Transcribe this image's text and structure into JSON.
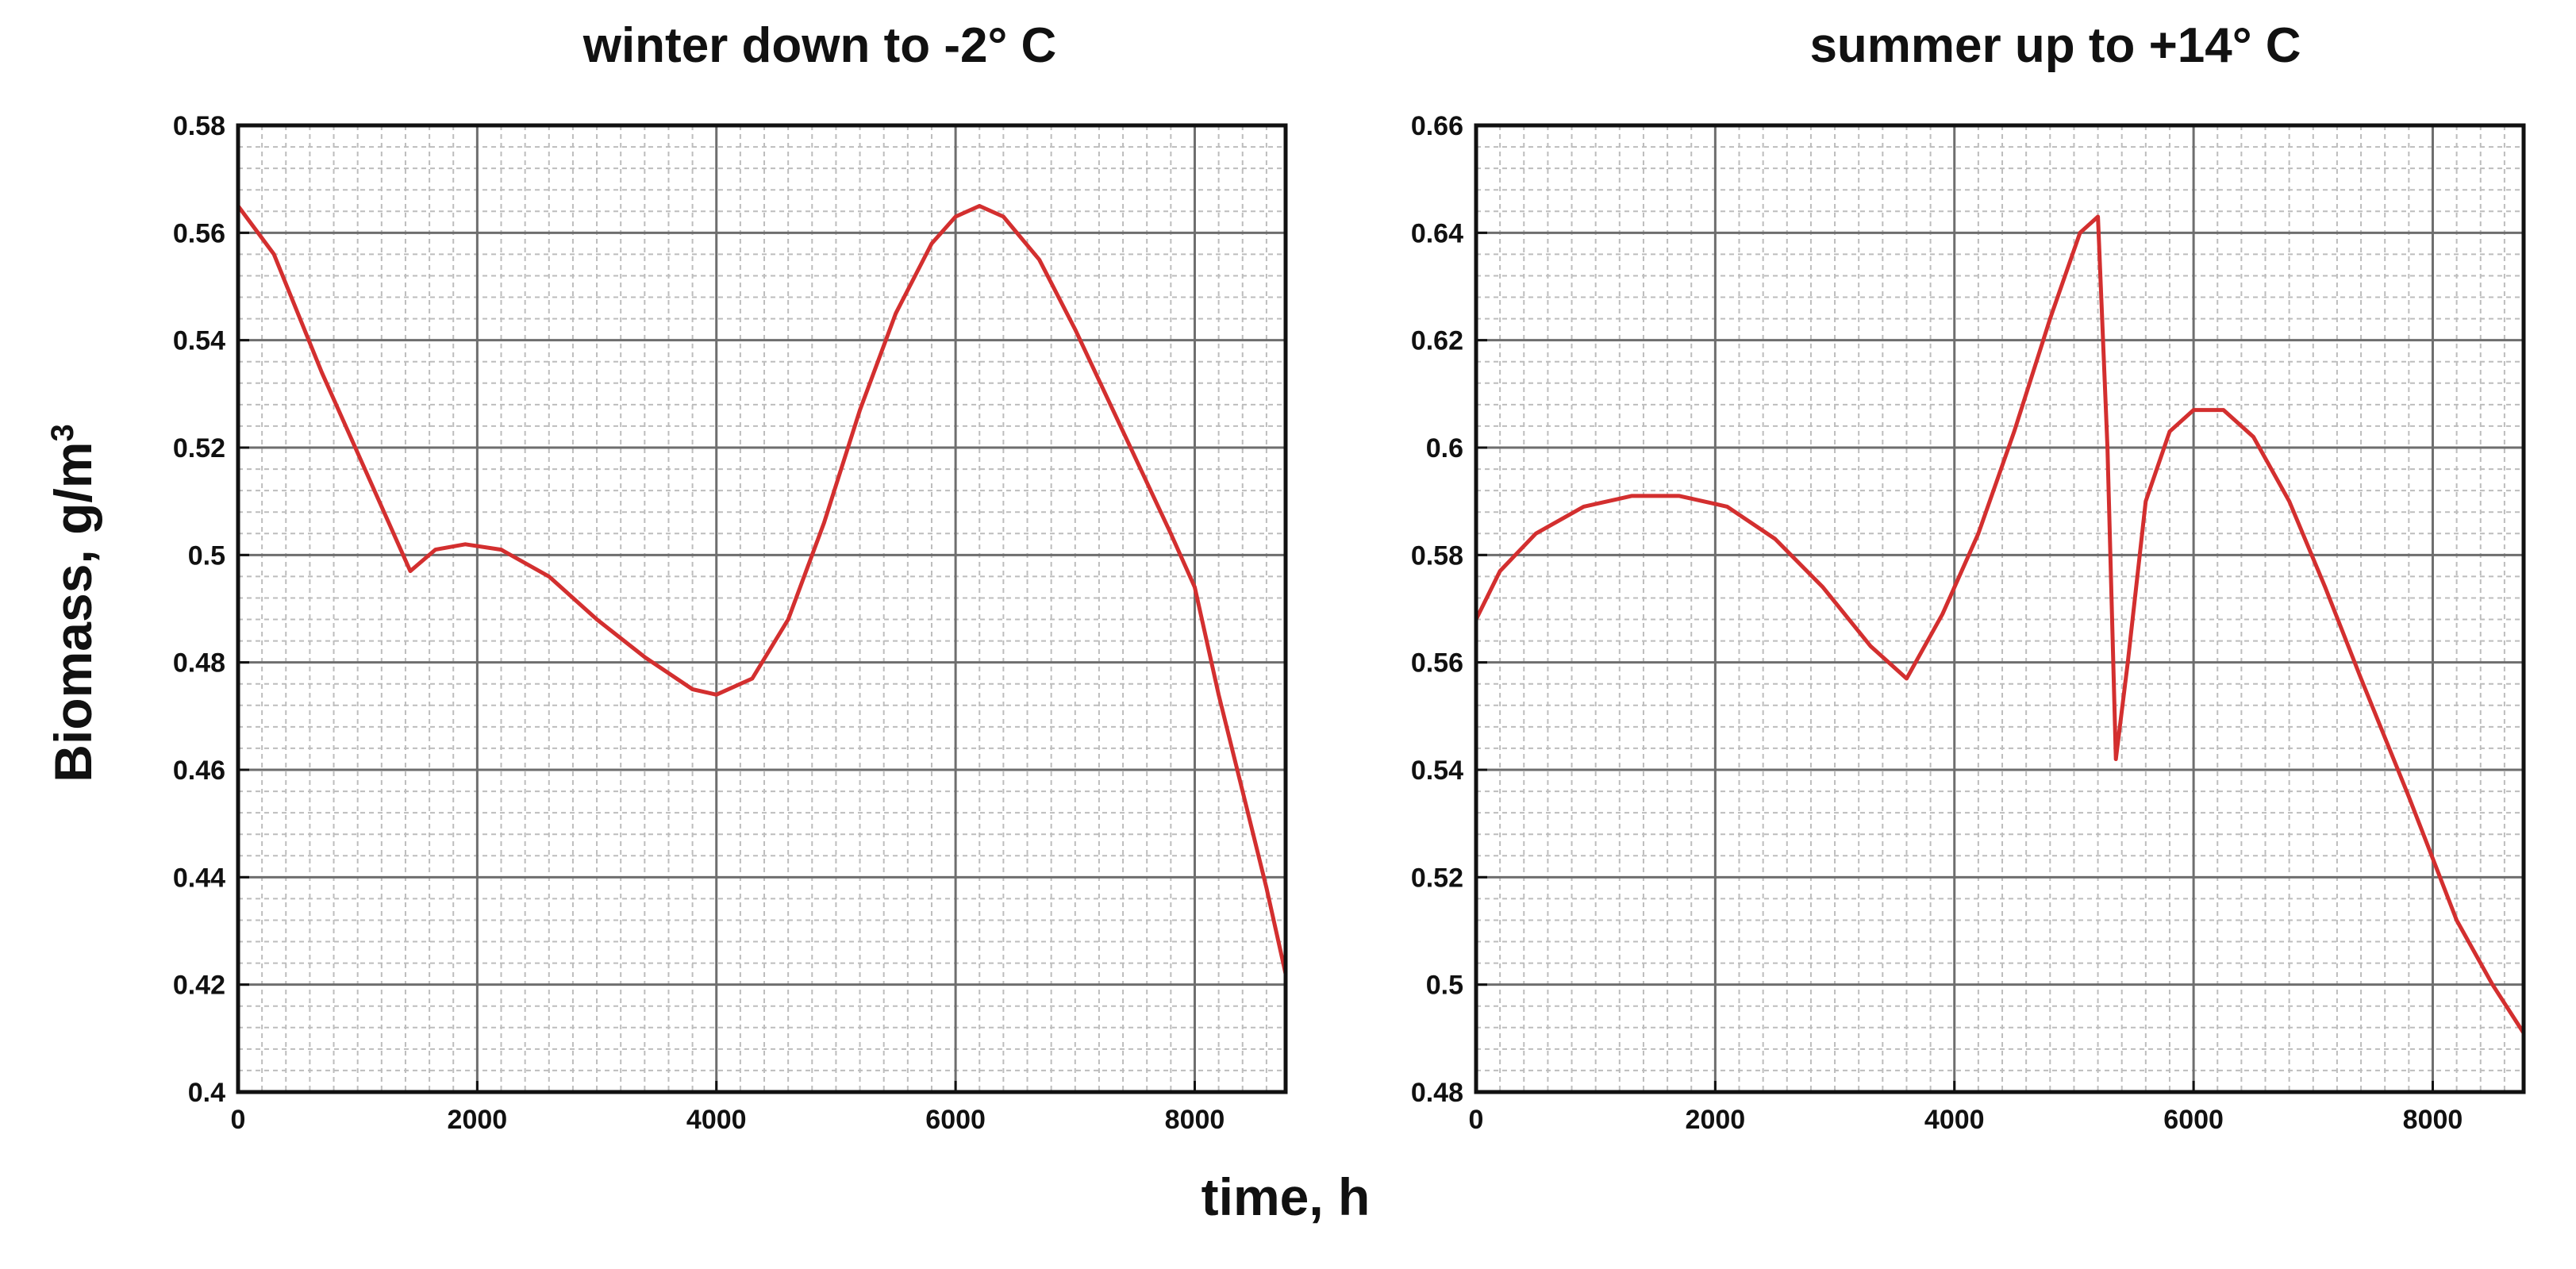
{
  "figure": {
    "ylabel_main": "Biomass, g/m",
    "ylabel_sup": "3",
    "xlabel": "time, h"
  },
  "chart_data": [
    {
      "type": "line",
      "title": "winter down to -2° C",
      "xlim": [
        0,
        8760
      ],
      "ylim": [
        0.4,
        0.58
      ],
      "xticks": [
        0,
        2000,
        4000,
        6000,
        8000
      ],
      "xtick_labels": [
        "0",
        "2000",
        "4000",
        "6000",
        "8000"
      ],
      "yticks": [
        0.4,
        0.42,
        0.44,
        0.46,
        0.48,
        0.5,
        0.52,
        0.54,
        0.56,
        0.58
      ],
      "ytick_labels": [
        "0.4",
        "0.42",
        "0.44",
        "0.46",
        "0.48",
        "0.5",
        "0.52",
        "0.54",
        "0.56",
        "0.58"
      ],
      "grid": true,
      "line_color": "#d32f2f",
      "series": [
        {
          "x": [
            0,
            300,
            700,
            1100,
            1440,
            1650,
            1900,
            2200,
            2600,
            3000,
            3400,
            3800,
            4000,
            4300,
            4600,
            4900,
            5200,
            5500,
            5800,
            6000,
            6200,
            6400,
            6700,
            7000,
            7400,
            7800,
            8000,
            8200,
            8400,
            8600,
            8760
          ],
          "y": [
            0.565,
            0.556,
            0.534,
            0.514,
            0.497,
            0.501,
            0.502,
            0.501,
            0.496,
            0.488,
            0.481,
            0.475,
            0.474,
            0.477,
            0.488,
            0.506,
            0.527,
            0.545,
            0.558,
            0.563,
            0.565,
            0.563,
            0.555,
            0.542,
            0.523,
            0.504,
            0.494,
            0.474,
            0.456,
            0.438,
            0.422
          ]
        }
      ]
    },
    {
      "type": "line",
      "title": "summer up to +14° C",
      "xlim": [
        0,
        8760
      ],
      "ylim": [
        0.48,
        0.66
      ],
      "xticks": [
        0,
        2000,
        4000,
        6000,
        8000
      ],
      "xtick_labels": [
        "0",
        "2000",
        "4000",
        "6000",
        "8000"
      ],
      "yticks": [
        0.48,
        0.5,
        0.52,
        0.54,
        0.56,
        0.58,
        0.6,
        0.62,
        0.64,
        0.66
      ],
      "ytick_labels": [
        "0.48",
        "0.5",
        "0.52",
        "0.54",
        "0.56",
        "0.58",
        "0.6",
        "0.62",
        "0.64",
        "0.66"
      ],
      "grid": true,
      "line_color": "#d32f2f",
      "series": [
        {
          "x": [
            0,
            200,
            500,
            900,
            1300,
            1700,
            2100,
            2500,
            2900,
            3300,
            3600,
            3900,
            4200,
            4500,
            4800,
            5050,
            5200,
            5280,
            5350,
            5450,
            5600,
            5800,
            6000,
            6250,
            6500,
            6800,
            7100,
            7400,
            7800,
            8200,
            8500,
            8760
          ],
          "y": [
            0.568,
            0.577,
            0.584,
            0.589,
            0.591,
            0.591,
            0.589,
            0.583,
            0.574,
            0.563,
            0.557,
            0.569,
            0.584,
            0.603,
            0.624,
            0.64,
            0.643,
            0.6,
            0.542,
            0.56,
            0.59,
            0.603,
            0.607,
            0.607,
            0.602,
            0.59,
            0.574,
            0.557,
            0.535,
            0.512,
            0.5,
            0.491
          ]
        }
      ]
    }
  ]
}
